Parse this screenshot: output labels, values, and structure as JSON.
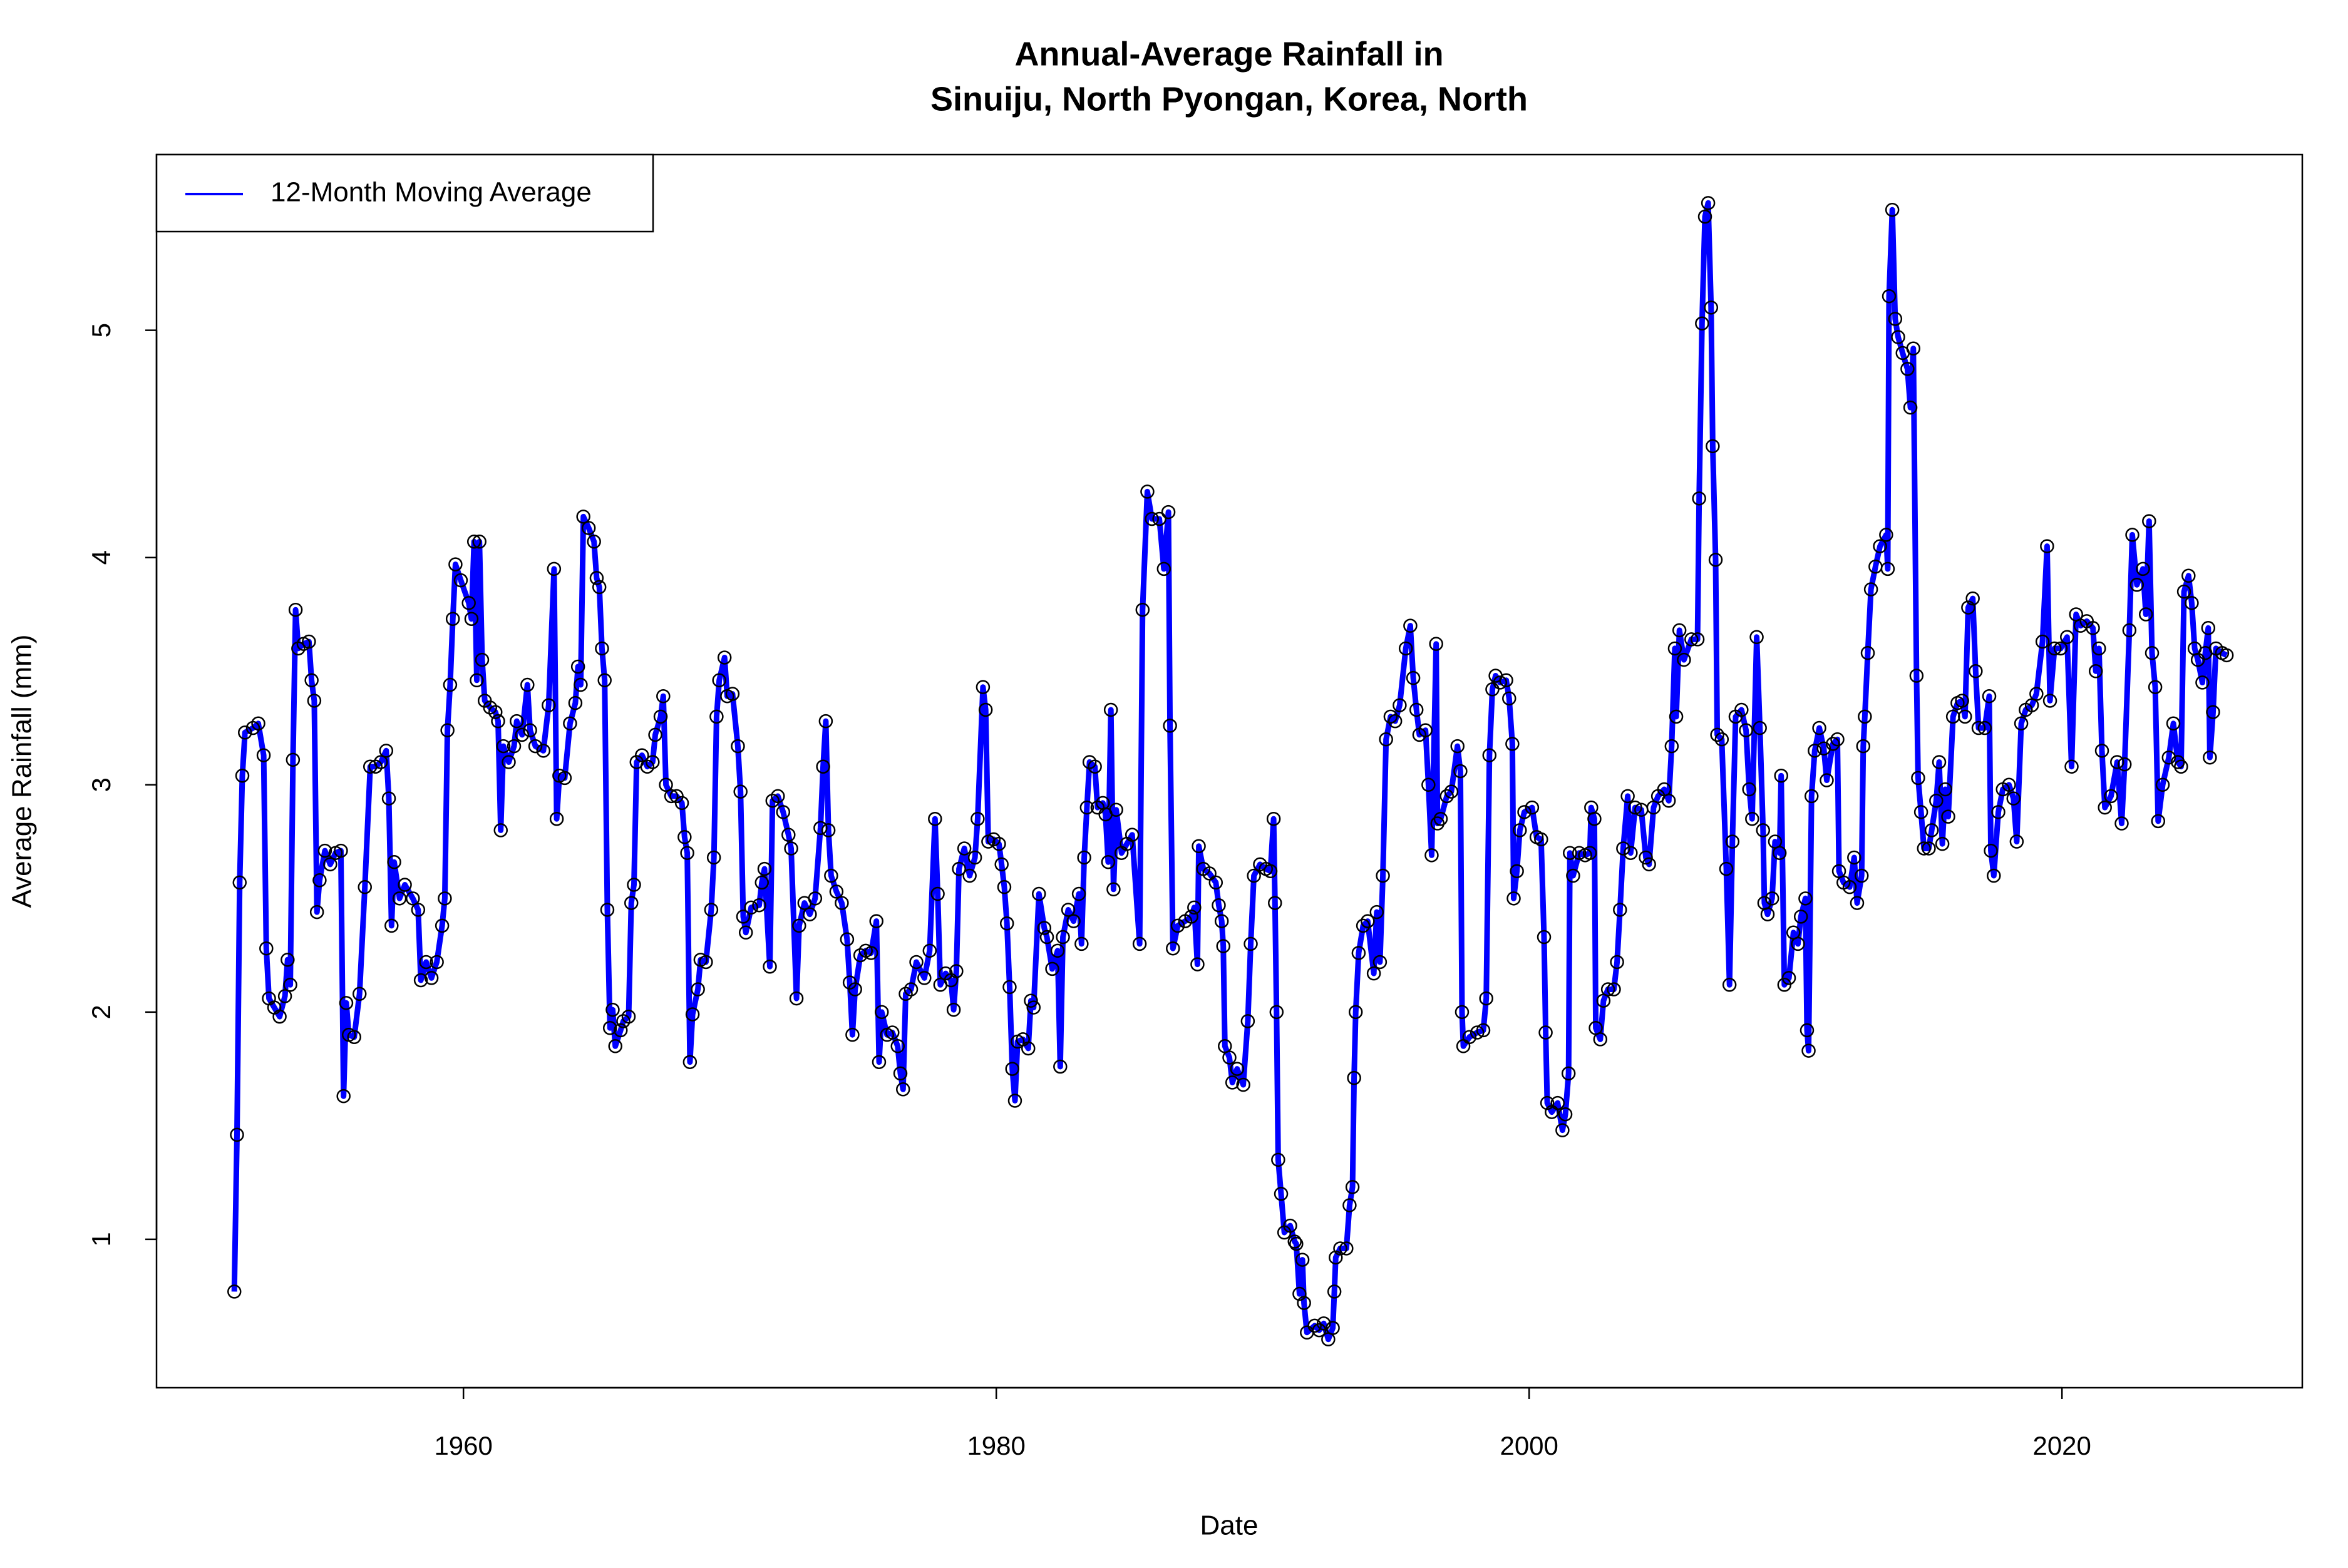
{
  "chart_data": {
    "type": "line",
    "title": [
      "Annual-Average Rainfall in",
      "Sinuiju, North Pyongan, Korea, North"
    ],
    "x_label": "Date",
    "y_label": "Average Rainfall (mm)",
    "xlim": [
      1948.48,
      2029.02
    ],
    "ylim": [
      0.347,
      5.773
    ],
    "xticks": [
      1960,
      1980,
      2000,
      2020
    ],
    "yticks": [
      1,
      2,
      3,
      4,
      5
    ],
    "grid": false,
    "markers": "open-circle",
    "legend": "top-left",
    "x": [
      1951.4,
      1951.5,
      1951.6,
      1951.7,
      1951.8,
      1952.1,
      1952.3,
      1952.5,
      1952.6,
      1952.7,
      1952.9,
      1953.1,
      1953.3,
      1953.4,
      1953.5,
      1953.6,
      1953.7,
      1953.8,
      1954.0,
      1954.2,
      1954.3,
      1954.4,
      1954.5,
      1954.6,
      1954.8,
      1955.0,
      1955.2,
      1955.4,
      1955.5,
      1955.6,
      1955.7,
      1955.9,
      1956.1,
      1956.3,
      1956.5,
      1956.7,
      1956.9,
      1957.1,
      1957.2,
      1957.3,
      1957.4,
      1957.6,
      1957.8,
      1958.1,
      1958.3,
      1958.4,
      1958.6,
      1958.8,
      1959.0,
      1959.2,
      1959.3,
      1959.4,
      1959.5,
      1959.6,
      1959.7,
      1959.9,
      1960.2,
      1960.3,
      1960.4,
      1960.5,
      1960.6,
      1960.7,
      1960.8,
      1961.0,
      1961.2,
      1961.3,
      1961.4,
      1961.5,
      1961.7,
      1961.9,
      1962.0,
      1962.2,
      1962.4,
      1962.5,
      1962.7,
      1963.0,
      1963.2,
      1963.4,
      1963.5,
      1963.6,
      1963.8,
      1964.0,
      1964.2,
      1964.3,
      1964.4,
      1964.5,
      1964.7,
      1964.9,
      1965.0,
      1965.1,
      1965.2,
      1965.3,
      1965.4,
      1965.5,
      1965.6,
      1965.7,
      1965.9,
      1966.0,
      1966.2,
      1966.3,
      1966.4,
      1966.5,
      1966.7,
      1966.9,
      1967.1,
      1967.2,
      1967.4,
      1967.5,
      1967.6,
      1967.8,
      1968.0,
      1968.2,
      1968.3,
      1968.4,
      1968.5,
      1968.6,
      1968.8,
      1968.9,
      1969.1,
      1969.3,
      1969.4,
      1969.5,
      1969.6,
      1969.8,
      1969.9,
      1970.1,
      1970.3,
      1970.4,
      1970.5,
      1970.6,
      1970.8,
      1971.1,
      1971.2,
      1971.3,
      1971.5,
      1971.6,
      1971.8,
      1972.0,
      1972.2,
      1972.3,
      1972.5,
      1972.6,
      1972.8,
      1973.0,
      1973.2,
      1973.4,
      1973.5,
      1973.6,
      1973.7,
      1973.8,
      1974.0,
      1974.2,
      1974.4,
      1974.5,
      1974.6,
      1974.7,
      1974.9,
      1975.1,
      1975.3,
      1975.5,
      1975.6,
      1975.7,
      1975.9,
      1976.1,
      1976.3,
      1976.4,
      1976.5,
      1976.6,
      1976.8,
      1977.0,
      1977.3,
      1977.5,
      1977.7,
      1977.8,
      1977.9,
      1978.1,
      1978.3,
      1978.4,
      1978.5,
      1978.6,
      1978.8,
      1979.0,
      1979.2,
      1979.3,
      1979.5,
      1979.6,
      1979.7,
      1979.9,
      1980.1,
      1980.2,
      1980.3,
      1980.4,
      1980.5,
      1980.6,
      1980.7,
      1980.8,
      1981.0,
      1981.2,
      1981.3,
      1981.4,
      1981.6,
      1981.8,
      1981.9,
      1982.1,
      1982.3,
      1982.4,
      1982.5,
      1982.7,
      1982.9,
      1983.1,
      1983.2,
      1983.3,
      1983.4,
      1983.5,
      1983.7,
      1983.8,
      1984.0,
      1984.1,
      1984.2,
      1984.3,
      1984.4,
      1984.5,
      1984.7,
      1984.9,
      1985.1,
      1985.38,
      1985.49,
      1985.67,
      1985.84,
      1986.12,
      1986.29,
      1986.46,
      1986.52,
      1986.63,
      1986.81,
      1987.09,
      1987.32,
      1987.43,
      1987.55,
      1987.6,
      1987.77,
      1988.0,
      1988.24,
      1988.35,
      1988.46,
      1988.52,
      1988.58,
      1988.75,
      1988.86,
      1989.04,
      1989.27,
      1989.44,
      1989.55,
      1989.67,
      1989.9,
      1990.12,
      1990.29,
      1990.41,
      1990.46,
      1990.52,
      1990.58,
      1990.69,
      1990.81,
      1991.03,
      1991.2,
      1991.26,
      1991.38,
      1991.49,
      1991.55,
      1991.66,
      1991.95,
      1992.12,
      1992.29,
      1992.46,
      1992.63,
      1992.69,
      1992.74,
      1992.91,
      1993.14,
      1993.26,
      1993.37,
      1993.43,
      1993.49,
      1993.6,
      1993.77,
      1993.94,
      1994.17,
      1994.28,
      1994.4,
      1994.51,
      1994.63,
      1994.8,
      1994.97,
      1995.14,
      1995.37,
      1995.54,
      1995.65,
      1995.77,
      1995.88,
      1996.11,
      1996.22,
      1996.34,
      1996.51,
      1996.56,
      1996.68,
      1996.91,
      1997.08,
      1997.31,
      1997.42,
      1997.48,
      1997.53,
      1997.76,
      1998.05,
      1998.28,
      1998.39,
      1998.51,
      1998.62,
      1998.74,
      1998.91,
      1999.14,
      1999.25,
      1999.37,
      1999.42,
      1999.54,
      1999.65,
      1999.82,
      2000.11,
      2000.28,
      2000.45,
      2000.56,
      2000.62,
      2000.68,
      2000.85,
      2001.07,
      2001.25,
      2001.36,
      2001.48,
      2001.53,
      2001.65,
      2001.88,
      2002.1,
      2002.28,
      2002.33,
      2002.45,
      2002.5,
      2002.67,
      2002.79,
      2002.96,
      2003.18,
      2003.3,
      2003.41,
      2003.53,
      2003.7,
      2003.81,
      2003.98,
      2004.21,
      2004.38,
      2004.5,
      2004.67,
      2004.84,
      2005.07,
      2005.24,
      2005.35,
      2005.47,
      2005.52,
      2005.64,
      2005.81,
      2006.09,
      2006.32,
      2006.38,
      2006.49,
      2006.6,
      2006.72,
      2006.83,
      2006.89,
      2007.0,
      2007.06,
      2007.23,
      2007.4,
      2007.52,
      2007.63,
      2007.75,
      2007.97,
      2008.14,
      2008.26,
      2008.37,
      2008.54,
      2008.66,
      2008.78,
      2008.83,
      2008.95,
      2009.12,
      2009.23,
      2009.4,
      2009.46,
      2009.58,
      2009.75,
      2009.92,
      2010.09,
      2010.2,
      2010.37,
      2010.43,
      2010.49,
      2010.6,
      2010.72,
      2010.89,
      2011.06,
      2011.17,
      2011.4,
      2011.57,
      2011.63,
      2011.8,
      2012.03,
      2012.2,
      2012.31,
      2012.48,
      2012.54,
      2012.6,
      2012.71,
      2012.83,
      2013.0,
      2013.17,
      2013.4,
      2013.46,
      2013.51,
      2013.63,
      2013.74,
      2013.85,
      2014.02,
      2014.2,
      2014.31,
      2014.42,
      2014.54,
      2014.6,
      2014.71,
      2014.82,
      2015.0,
      2015.11,
      2015.28,
      2015.39,
      2015.51,
      2015.62,
      2015.73,
      2015.91,
      2016.08,
      2016.25,
      2016.36,
      2016.48,
      2016.65,
      2016.76,
      2016.87,
      2017.1,
      2017.27,
      2017.33,
      2017.44,
      2017.61,
      2017.78,
      2018.01,
      2018.18,
      2018.3,
      2018.47,
      2018.64,
      2018.87,
      2019.04,
      2019.27,
      2019.44,
      2019.55,
      2019.72,
      2019.95,
      2020.19,
      2020.36,
      2020.53,
      2020.7,
      2020.93,
      2021.16,
      2021.27,
      2021.39,
      2021.5,
      2021.61,
      2021.84,
      2022.07,
      2022.24,
      2022.35,
      2022.53,
      2022.64,
      2022.81,
      2023.04,
      2023.15,
      2023.27,
      2023.38,
      2023.5,
      2023.61,
      2023.78,
      2024.01,
      2024.18,
      2024.35,
      2024.47,
      2024.58,
      2024.75,
      2024.87,
      2024.98,
      2025.1,
      2025.27,
      2025.38,
      2025.49,
      2025.55,
      2025.67,
      2025.78,
      2026.01,
      2026.18
    ],
    "series": [
      {
        "name": "12-Month Moving Average",
        "color": "#0000ff",
        "values": [
          0.77,
          1.46,
          2.57,
          3.04,
          3.23,
          3.25,
          3.27,
          3.13,
          2.28,
          2.06,
          2.02,
          1.98,
          2.07,
          2.23,
          2.12,
          3.11,
          3.77,
          3.6,
          3.62,
          3.63,
          3.46,
          3.37,
          2.44,
          2.58,
          2.71,
          2.65,
          2.7,
          2.71,
          1.63,
          2.04,
          1.9,
          1.89,
          2.08,
          2.55,
          3.08,
          3.08,
          3.1,
          3.15,
          2.94,
          2.38,
          2.66,
          2.5,
          2.56,
          2.5,
          2.45,
          2.14,
          2.22,
          2.15,
          2.22,
          2.38,
          2.5,
          3.24,
          3.44,
          3.73,
          3.97,
          3.9,
          3.8,
          3.73,
          4.07,
          3.46,
          4.07,
          3.55,
          3.37,
          3.34,
          3.32,
          3.28,
          2.8,
          3.17,
          3.1,
          3.17,
          3.28,
          3.22,
          3.44,
          3.24,
          3.17,
          3.15,
          3.35,
          3.95,
          2.85,
          3.04,
          3.03,
          3.27,
          3.36,
          3.52,
          3.44,
          4.18,
          4.13,
          4.07,
          3.91,
          3.87,
          3.6,
          3.46,
          2.45,
          1.93,
          2.01,
          1.85,
          1.92,
          1.96,
          1.98,
          2.48,
          2.56,
          3.1,
          3.13,
          3.08,
          3.1,
          3.22,
          3.3,
          3.39,
          3.0,
          2.95,
          2.95,
          2.92,
          2.77,
          2.7,
          1.78,
          1.99,
          2.1,
          2.23,
          2.22,
          2.45,
          2.68,
          3.3,
          3.46,
          3.56,
          3.39,
          3.4,
          3.17,
          2.97,
          2.42,
          2.35,
          2.46,
          2.47,
          2.57,
          2.63,
          2.2,
          2.93,
          2.95,
          2.88,
          2.78,
          2.72,
          2.06,
          2.38,
          2.48,
          2.43,
          2.5,
          2.81,
          3.08,
          3.28,
          2.8,
          2.6,
          2.53,
          2.48,
          2.32,
          2.13,
          1.9,
          2.1,
          2.25,
          2.27,
          2.26,
          2.4,
          1.78,
          2.0,
          1.9,
          1.91,
          1.85,
          1.73,
          1.66,
          2.08,
          2.1,
          2.22,
          2.15,
          2.27,
          2.85,
          2.52,
          2.12,
          2.17,
          2.14,
          2.01,
          2.18,
          2.63,
          2.72,
          2.6,
          2.68,
          2.85,
          3.43,
          3.33,
          2.75,
          2.76,
          2.74,
          2.65,
          2.55,
          2.39,
          2.11,
          1.75,
          1.61,
          1.87,
          1.88,
          1.84,
          2.05,
          2.02,
          2.52,
          2.37,
          2.33,
          2.19,
          2.27,
          1.76,
          2.33,
          2.45,
          2.4,
          2.52,
          2.3,
          2.68,
          2.9,
          3.1,
          3.08,
          2.9,
          2.92,
          2.87,
          2.66,
          3.33,
          2.54,
          2.89,
          2.7,
          2.74,
          2.78,
          2.3,
          3.77,
          4.29,
          4.17,
          4.17,
          3.95,
          4.2,
          3.26,
          2.28,
          2.38,
          2.4,
          2.42,
          2.46,
          2.21,
          2.73,
          2.63,
          2.61,
          2.57,
          2.47,
          2.4,
          2.29,
          1.85,
          1.8,
          1.69,
          1.75,
          1.68,
          1.96,
          2.3,
          2.6,
          2.65,
          2.63,
          2.62,
          2.85,
          2.48,
          2.0,
          1.35,
          1.2,
          1.03,
          1.06,
          0.99,
          0.98,
          0.76,
          0.91,
          0.72,
          0.59,
          0.62,
          0.6,
          0.63,
          0.56,
          0.61,
          0.77,
          0.92,
          0.96,
          0.96,
          1.15,
          1.23,
          1.71,
          2.0,
          2.26,
          2.38,
          2.4,
          2.17,
          2.44,
          2.22,
          2.6,
          3.2,
          3.3,
          3.28,
          3.35,
          3.6,
          3.7,
          3.47,
          3.33,
          3.22,
          3.24,
          3.0,
          2.69,
          3.62,
          2.83,
          2.85,
          2.95,
          2.97,
          3.17,
          3.06,
          2.0,
          1.85,
          1.89,
          1.91,
          1.92,
          2.06,
          3.13,
          3.42,
          3.48,
          3.45,
          3.46,
          3.38,
          3.18,
          2.5,
          2.62,
          2.8,
          2.88,
          2.9,
          2.77,
          2.76,
          2.33,
          1.91,
          1.6,
          1.56,
          1.6,
          1.48,
          1.55,
          1.73,
          2.7,
          2.6,
          2.7,
          2.69,
          2.7,
          2.9,
          2.85,
          1.93,
          1.88,
          2.05,
          2.1,
          2.1,
          2.22,
          2.45,
          2.72,
          2.95,
          2.7,
          2.9,
          2.89,
          2.68,
          2.65,
          2.9,
          2.95,
          2.98,
          2.93,
          3.17,
          3.6,
          3.3,
          3.68,
          3.55,
          3.64,
          3.64,
          4.26,
          5.03,
          5.5,
          5.56,
          5.1,
          4.49,
          3.99,
          3.22,
          3.2,
          2.63,
          2.12,
          2.75,
          3.3,
          3.33,
          3.24,
          2.98,
          2.85,
          3.65,
          3.25,
          2.8,
          2.48,
          2.43,
          2.5,
          2.75,
          2.7,
          3.04,
          2.12,
          2.15,
          2.35,
          2.3,
          2.42,
          2.5,
          1.92,
          1.83,
          2.95,
          3.15,
          3.25,
          3.16,
          3.02,
          3.18,
          3.2,
          2.62,
          2.57,
          2.55,
          2.68,
          2.48,
          2.6,
          3.17,
          3.3,
          3.58,
          3.86,
          3.96,
          4.05,
          4.1,
          3.95,
          5.15,
          5.53,
          5.05,
          4.97,
          4.9,
          4.83,
          4.66,
          4.92,
          3.48,
          3.03,
          2.88,
          2.72,
          2.72,
          2.8,
          2.93,
          3.1,
          2.74,
          2.98,
          2.86,
          3.3,
          3.36,
          3.37,
          3.3,
          3.78,
          3.82,
          3.5,
          3.25,
          3.25,
          3.39,
          2.71,
          2.6,
          2.88,
          2.98,
          3.0,
          2.94,
          2.75,
          3.27,
          3.33,
          3.35,
          3.4,
          3.63,
          4.05,
          3.37,
          3.6,
          3.6,
          3.65,
          3.08,
          3.75,
          3.7,
          3.72,
          3.69,
          3.5,
          3.6,
          3.15,
          2.9,
          2.95,
          3.1,
          2.83,
          3.09,
          3.68,
          4.1,
          3.88,
          3.95,
          3.75,
          4.16,
          3.58,
          3.43,
          2.84,
          3.0,
          3.12,
          3.27,
          3.1,
          3.08,
          3.85,
          3.92,
          3.8,
          3.6,
          3.55,
          3.45,
          3.58,
          3.69,
          3.12,
          3.32,
          3.6,
          3.58,
          3.57
        ]
      }
    ]
  }
}
